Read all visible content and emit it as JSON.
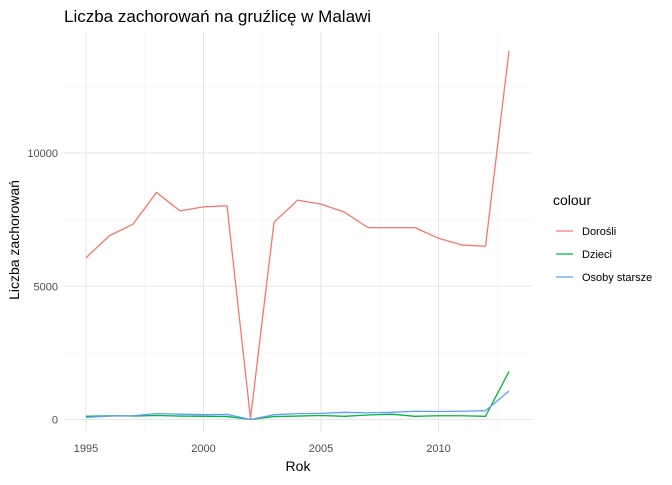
{
  "chart_data": {
    "type": "line",
    "title": "Liczba zachorowań na gruźlicę w Malawi",
    "xlabel": "Rok",
    "ylabel": "Liczba zachorowań",
    "xlim": [
      1995,
      2013
    ],
    "ylim": [
      0,
      13900
    ],
    "x_ticks": [
      1995,
      2000,
      2005,
      2010
    ],
    "y_ticks": [
      0,
      5000,
      10000
    ],
    "grid": true,
    "legend": {
      "title": "colour",
      "position": "right"
    },
    "x": [
      1995,
      1996,
      1997,
      1998,
      1999,
      2000,
      2001,
      2002,
      2003,
      2004,
      2005,
      2006,
      2007,
      2008,
      2009,
      2010,
      2011,
      2012,
      2013
    ],
    "series": [
      {
        "name": "Dorośli",
        "color": "#F8766D",
        "values": [
          6070,
          6900,
          7330,
          8520,
          7830,
          7980,
          8020,
          30,
          7400,
          8230,
          8080,
          7780,
          7200,
          7200,
          7200,
          6800,
          6550,
          6500,
          13830
        ]
      },
      {
        "name": "Dzieci",
        "color": "#00BA38",
        "values": [
          120,
          140,
          130,
          150,
          130,
          120,
          110,
          0,
          110,
          130,
          150,
          120,
          170,
          200,
          120,
          140,
          140,
          120,
          1800
        ]
      },
      {
        "name": "Osoby starsze",
        "color": "#619CFF",
        "values": [
          80,
          130,
          140,
          220,
          200,
          180,
          190,
          0,
          180,
          220,
          230,
          270,
          250,
          270,
          310,
          300,
          310,
          330,
          1070
        ]
      }
    ]
  }
}
